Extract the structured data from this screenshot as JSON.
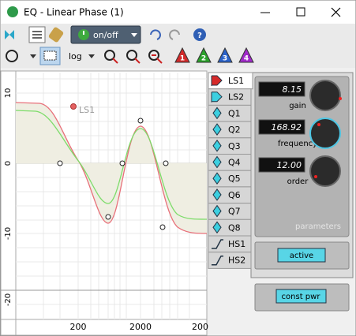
{
  "window": {
    "title": "EQ - Linear Phase (1)"
  },
  "toolbar": {
    "power": "on/off",
    "scale": "log",
    "bands": [
      "1",
      "2",
      "3",
      "4"
    ]
  },
  "plot": {
    "y_labels": [
      "10",
      "0",
      "-10",
      "-20"
    ],
    "x_labels": [
      "200",
      "2000",
      "200"
    ],
    "marker": "LS1"
  },
  "tabs": [
    "LS1",
    "LS2",
    "Q1",
    "Q2",
    "Q3",
    "Q4",
    "Q5",
    "Q6",
    "Q7",
    "Q8",
    "HS1",
    "HS2"
  ],
  "parameters": {
    "controls": [
      {
        "value": "8.15",
        "label": "gain"
      },
      {
        "value": "168.92",
        "label": "frequency"
      },
      {
        "value": "12.00",
        "label": "order"
      }
    ],
    "title": "parameters",
    "active": "active"
  },
  "const_pwr": "const pwr"
}
